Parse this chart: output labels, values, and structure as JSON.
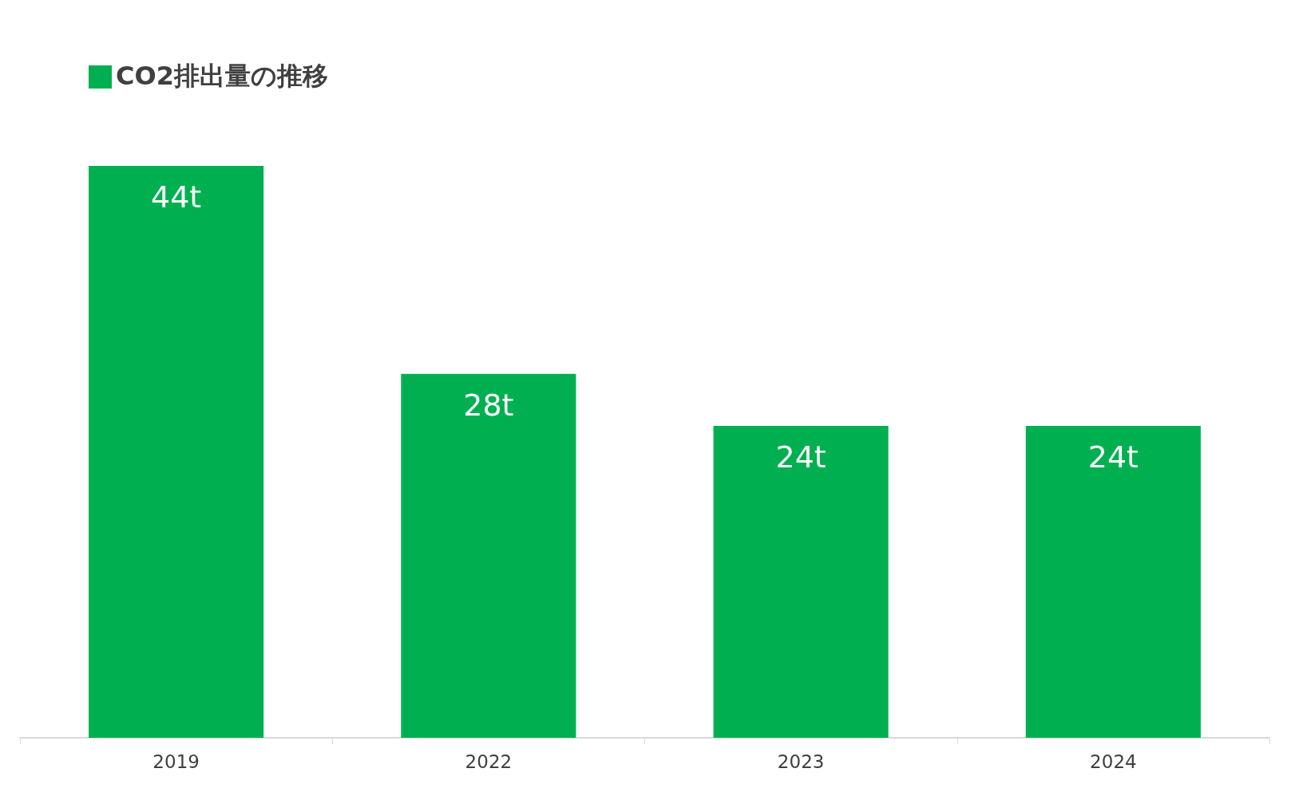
{
  "chart_data": {
    "type": "bar",
    "title": "CO2排出量の推移",
    "categories": [
      "2019",
      "2022",
      "2023",
      "2024"
    ],
    "values": [
      44,
      28,
      24,
      24
    ],
    "value_labels": [
      "44t",
      "28t",
      "24t",
      "24t"
    ],
    "color": "#00b050",
    "grid": false
  }
}
